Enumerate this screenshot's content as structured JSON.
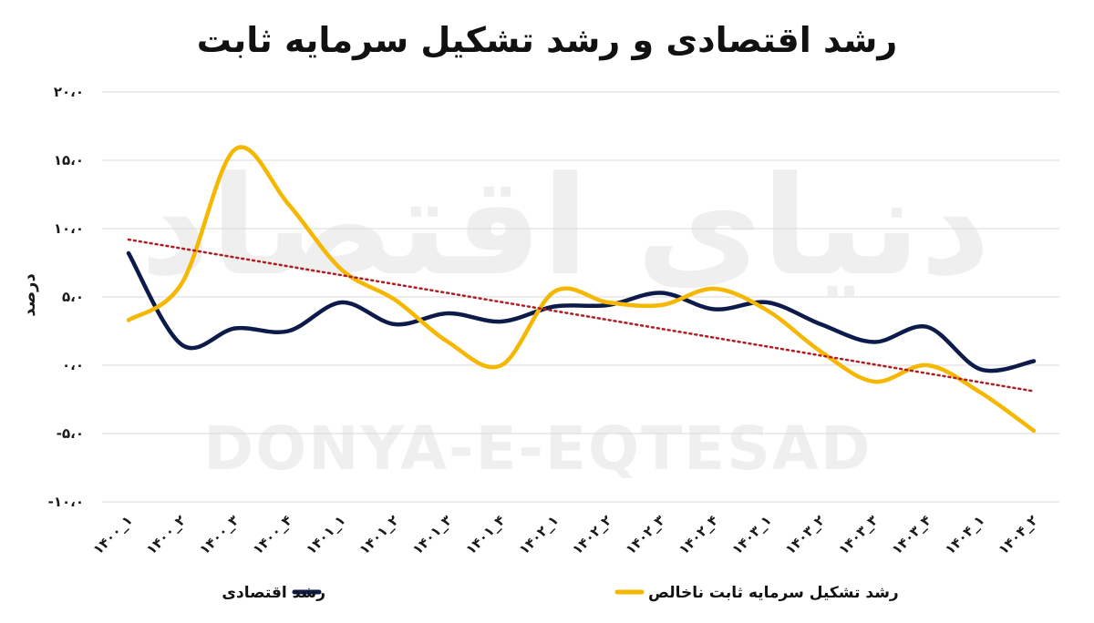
{
  "chart_data": {
    "type": "line",
    "title": "رشد اقتصادی و رشد تشکیل سرمایه ثابت",
    "ylabel": "درصد",
    "xlabel": "",
    "ylim": [
      -10,
      20
    ],
    "yticks": [
      20,
      15,
      10,
      5,
      0,
      -5,
      -10
    ],
    "ytick_labels": [
      "۲۰،۰",
      "۱۵،۰",
      "۱۰،۰",
      "۵،۰",
      "۰،۰",
      "-۵،۰",
      "-۱۰،۰"
    ],
    "grid": true,
    "legend_position": "bottom",
    "categories": [
      "۱۴۰۰_۱",
      "۱۴۰۰_۲",
      "۱۴۰۰_۳",
      "۱۴۰۰_۴",
      "۱۴۰۱_۱",
      "۱۴۰۱_۲",
      "۱۴۰۱_۳",
      "۱۴۰۱_۴",
      "۱۴۰۲_۱",
      "۱۴۰۲_۲",
      "۱۴۰۲_۳",
      "۱۴۰۲_۴",
      "۱۴۰۳_۱",
      "۱۴۰۳_۲",
      "۱۴۰۳_۳",
      "۱۴۰۳_۴",
      "۱۴۰۴_۱",
      "۱۴۰۴_۲"
    ],
    "series": [
      {
        "name": "رشد اقتصادی",
        "color": "#0d1b4a",
        "values": [
          8.2,
          1.5,
          2.7,
          2.5,
          4.6,
          3.0,
          3.8,
          3.2,
          4.3,
          4.4,
          5.3,
          4.1,
          4.6,
          3.0,
          1.7,
          2.8,
          -0.3,
          0.3
        ]
      },
      {
        "name": "رشد تشکیل سرمایه ثابت ناخالص",
        "color": "#f5b700",
        "values": [
          3.3,
          6.0,
          15.8,
          11.8,
          7.0,
          4.8,
          1.7,
          0.0,
          5.4,
          4.6,
          4.4,
          5.6,
          4.0,
          1.0,
          -1.2,
          0.0,
          -2.0,
          -4.8
        ]
      }
    ],
    "trendline": {
      "series": "رشد تشکیل سرمایه ثابت ناخالص",
      "color": "#b01e23",
      "style": "dotted",
      "start": 9.2,
      "end": -1.9
    }
  },
  "watermark": {
    "text_latin": "DONYA-E-EQTESAD",
    "text_fa": "دنیای اقتصاد"
  }
}
